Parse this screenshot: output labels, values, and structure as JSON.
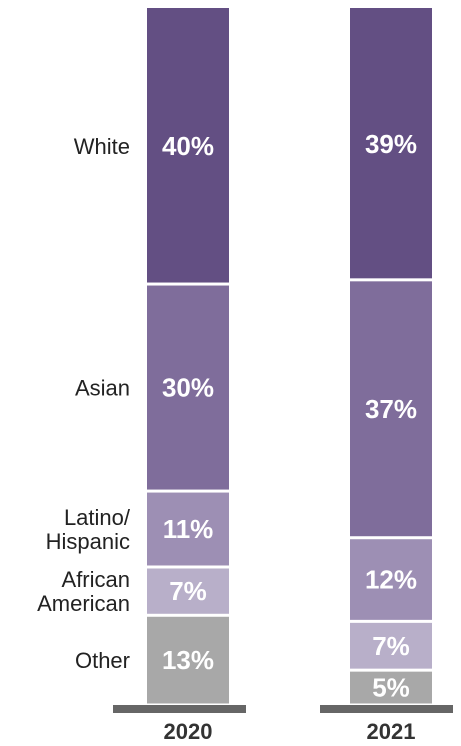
{
  "chart_data": {
    "type": "bar",
    "stacked": true,
    "categories": [
      "2020",
      "2021"
    ],
    "series": [
      {
        "name": "Other",
        "label_lines": [
          "Other"
        ],
        "values": [
          13,
          5
        ],
        "labels": [
          "13%",
          "5%"
        ],
        "color": "#a8a8a8"
      },
      {
        "name": "African American",
        "label_lines": [
          "African",
          "American"
        ],
        "values": [
          7,
          7
        ],
        "labels": [
          "7%",
          "7%"
        ],
        "color": "#b8afc9"
      },
      {
        "name": "Latino/Hispanic",
        "label_lines": [
          "Latino/",
          "Hispanic"
        ],
        "values": [
          11,
          12
        ],
        "labels": [
          "11%",
          "12%"
        ],
        "color": "#9d8fb4"
      },
      {
        "name": "Asian",
        "label_lines": [
          "Asian"
        ],
        "values": [
          30,
          37
        ],
        "labels": [
          "30%",
          "37%"
        ],
        "color": "#7f6d9b"
      },
      {
        "name": "White",
        "label_lines": [
          "White"
        ],
        "values": [
          40,
          39
        ],
        "labels": [
          "40%",
          "39%"
        ],
        "color": "#634f83"
      }
    ],
    "label_colors": {
      "segment_text": "#ffffff",
      "baseline": "#666666"
    },
    "title": "",
    "xlabel": "",
    "ylabel": ""
  }
}
